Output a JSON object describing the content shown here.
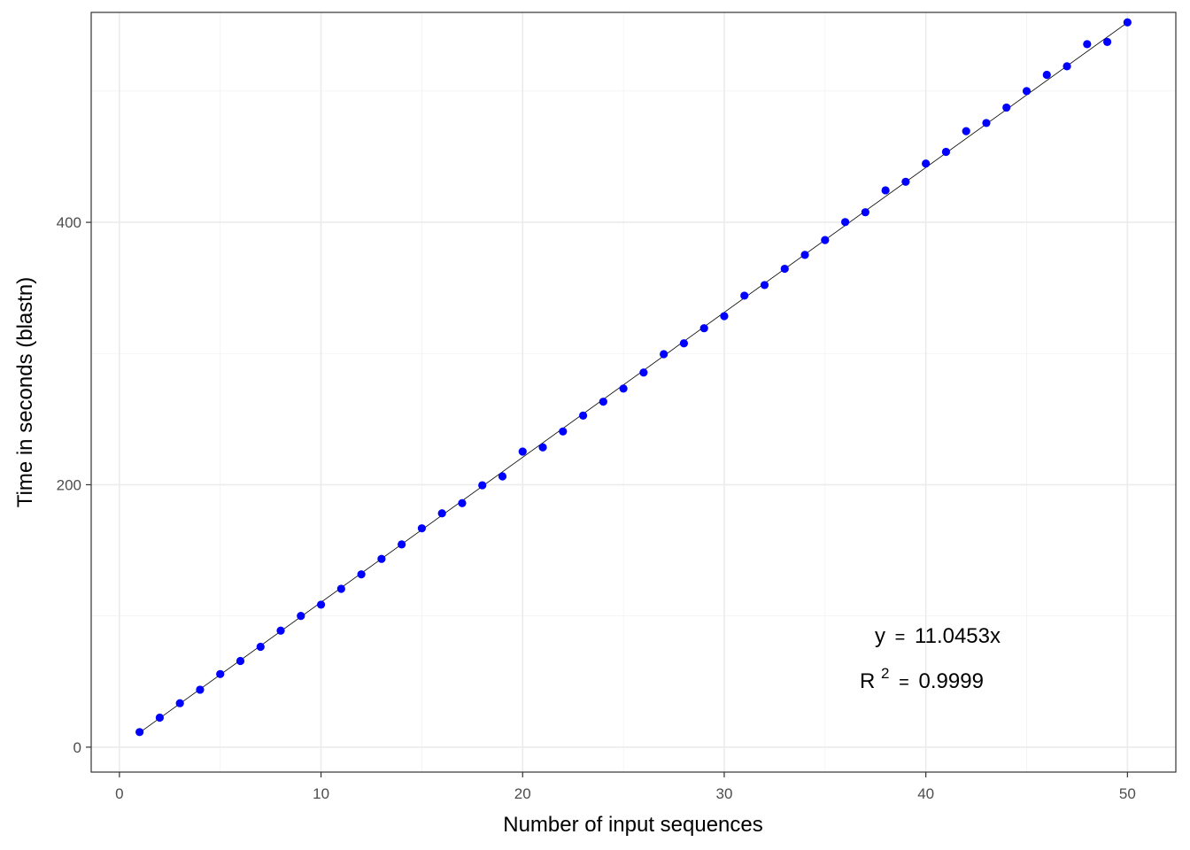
{
  "chart_data": {
    "type": "scatter",
    "xlabel": "Number of input sequences",
    "ylabel": "Time in seconds (blastn)",
    "xlim": [
      -1.4,
      52.4
    ],
    "ylim": [
      -19,
      560
    ],
    "x_ticks": [
      0,
      10,
      20,
      30,
      40,
      50
    ],
    "y_ticks": [
      0,
      200,
      400
    ],
    "x_tick_labels": [
      "0",
      "10",
      "20",
      "30",
      "40",
      "50"
    ],
    "y_tick_labels": [
      "0",
      "200",
      "400"
    ],
    "grid": true,
    "point_color": "#0000ff",
    "fit_line": {
      "slope": 11.0453,
      "intercept": 0,
      "color": "#000000"
    },
    "annotations": {
      "equation": "y = 11.0453x",
      "r_squared": "R² = 0.9999"
    },
    "x": [
      1,
      2,
      3,
      4,
      5,
      6,
      7,
      8,
      9,
      10,
      11,
      12,
      13,
      14,
      15,
      16,
      17,
      18,
      19,
      20,
      21,
      22,
      23,
      24,
      25,
      26,
      27,
      28,
      29,
      30,
      31,
      32,
      33,
      34,
      35,
      36,
      37,
      38,
      39,
      40,
      41,
      42,
      43,
      44,
      45,
      46,
      47,
      48,
      49,
      50
    ],
    "y": [
      11.5,
      22.5,
      33.5,
      43.8,
      55.7,
      65.7,
      76.5,
      88.8,
      100.0,
      108.6,
      120.7,
      131.7,
      143.5,
      154.5,
      166.8,
      178.2,
      186.0,
      199.6,
      206.4,
      225.3,
      228.5,
      240.6,
      252.7,
      263.3,
      273.3,
      285.5,
      299.5,
      307.8,
      319.3,
      328.5,
      344.1,
      352.2,
      364.6,
      375.2,
      386.5,
      400.2,
      407.7,
      424.4,
      430.9,
      444.8,
      453.7,
      469.5,
      475.7,
      487.5,
      500.0,
      512.4,
      518.9,
      535.8,
      537.5,
      552.4
    ]
  },
  "equation_lhs": "y",
  "equation_eq": "=",
  "equation_rhs": "11.0453x",
  "r2_base": "R",
  "r2_sup": "2",
  "r2_eq": "=",
  "r2_value": "0.9999"
}
